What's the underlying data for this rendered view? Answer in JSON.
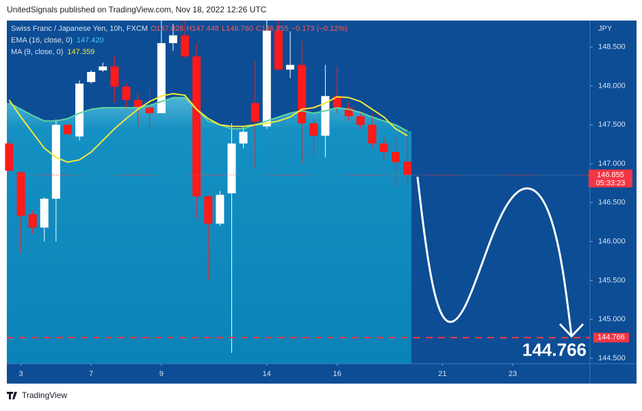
{
  "header": "UnitedSignals published on TradingView.com, Nov 18, 2022 12:26 UTC",
  "footer": "TradingView",
  "chart_data": {
    "type": "candlestick",
    "title": "Swiss Franc / Japanese Yen, 10h, FXCM",
    "ohlc_legend": [
      "O147.028",
      "H147.448",
      "L146.760",
      "C146.855",
      "−0.173 (−0.12%)"
    ],
    "currency": "JPY",
    "up_color": "#ffffff",
    "down_color": "#ff1a1a",
    "open": [
      147.26,
      146.89,
      146.35,
      146.18,
      146.55,
      147.5,
      147.35,
      148.05,
      148.2,
      148.25,
      147.99,
      147.82,
      147.72,
      147.65,
      148.55,
      148.65,
      148.38,
      146.58,
      146.23,
      146.62,
      147.26,
      147.78,
      147.48,
      148.71,
      148.21,
      148.27,
      147.52,
      147.36,
      147.87,
      147.72,
      147.61,
      147.5,
      147.26,
      147.15,
      147.028
    ],
    "high": [
      147.3,
      146.9,
      146.4,
      146.57,
      147.57,
      147.52,
      148.07,
      148.2,
      148.3,
      148.38,
      148.03,
      147.92,
      147.98,
      148.84,
      148.8,
      148.84,
      148.55,
      146.6,
      146.65,
      147.52,
      147.47,
      148.32,
      148.84,
      148.84,
      148.7,
      148.58,
      147.58,
      148.27,
      148.25,
      147.8,
      147.67,
      147.65,
      147.35,
      147.35,
      147.448
    ],
    "low": [
      146.9,
      145.85,
      146.1,
      146.0,
      146.0,
      147.36,
      147.3,
      148.03,
      148.18,
      147.79,
      147.7,
      147.48,
      147.45,
      147.65,
      148.45,
      148.35,
      146.3,
      145.5,
      146.2,
      144.57,
      147.2,
      146.95,
      147.45,
      148.2,
      148.1,
      147.0,
      147.1,
      147.08,
      147.65,
      147.55,
      147.45,
      147.2,
      147.05,
      146.7,
      146.76
    ],
    "close": [
      146.91,
      146.33,
      146.18,
      146.55,
      147.5,
      147.38,
      148.03,
      148.18,
      148.25,
      147.99,
      147.82,
      147.72,
      147.65,
      148.55,
      148.65,
      148.38,
      146.58,
      146.23,
      146.6,
      147.26,
      147.41,
      147.54,
      148.71,
      148.21,
      148.27,
      147.52,
      147.36,
      147.87,
      147.72,
      147.61,
      147.5,
      147.26,
      147.15,
      147.02,
      146.855
    ],
    "lines": [
      {
        "name": "EMA (16, close, 0)",
        "legend_value": "147.420",
        "color": "#5fd3a0",
        "value_color": "#4fc3f7",
        "area": true,
        "values": [
          147.78,
          147.7,
          147.62,
          147.55,
          147.55,
          147.58,
          147.65,
          147.7,
          147.72,
          147.72,
          147.72,
          147.72,
          147.75,
          147.8,
          147.85,
          147.85,
          147.7,
          147.55,
          147.5,
          147.45,
          147.45,
          147.5,
          147.55,
          147.6,
          147.65,
          147.68,
          147.65,
          147.68,
          147.72,
          147.7,
          147.66,
          147.6,
          147.55,
          147.5,
          147.42
        ]
      },
      {
        "name": "MA (9, close, 0)",
        "legend_value": "147.359",
        "color": "#f5e83a",
        "value_color": "#f5e83a",
        "area": false,
        "values": [
          147.82,
          147.6,
          147.4,
          147.2,
          147.08,
          147.02,
          147.05,
          147.15,
          147.3,
          147.45,
          147.58,
          147.7,
          147.8,
          147.87,
          147.9,
          147.88,
          147.7,
          147.58,
          147.5,
          147.48,
          147.48,
          147.5,
          147.52,
          147.55,
          147.6,
          147.7,
          147.72,
          147.78,
          147.86,
          147.85,
          147.8,
          147.7,
          147.6,
          147.45,
          147.36
        ]
      }
    ],
    "xlim": [
      -0.2,
      49.6
    ],
    "xticks": [
      {
        "value": 1,
        "label": "3"
      },
      {
        "value": 7,
        "label": "7"
      },
      {
        "value": 13,
        "label": "9"
      },
      {
        "value": 22,
        "label": "14"
      },
      {
        "value": 28,
        "label": "16"
      },
      {
        "value": 37,
        "label": "21"
      },
      {
        "value": 43,
        "label": "23"
      }
    ],
    "ylim": [
      144.43,
      148.84
    ],
    "yticks": [
      {
        "value": 144.5,
        "label": "144.500"
      },
      {
        "value": 145,
        "label": "145.000"
      },
      {
        "value": 145.5,
        "label": "145.500"
      },
      {
        "value": 146,
        "label": "146.000"
      },
      {
        "value": 146.5,
        "label": "146.500"
      },
      {
        "value": 147,
        "label": "147.000"
      },
      {
        "value": 147.5,
        "label": "147.500"
      },
      {
        "value": 148,
        "label": "148.000"
      },
      {
        "value": 148.5,
        "label": "148.500"
      }
    ],
    "last_price": {
      "value": 146.855,
      "label": "146.855"
    },
    "countdown": "05:33:23",
    "target": {
      "value": 144.766,
      "label": "144.766"
    }
  }
}
